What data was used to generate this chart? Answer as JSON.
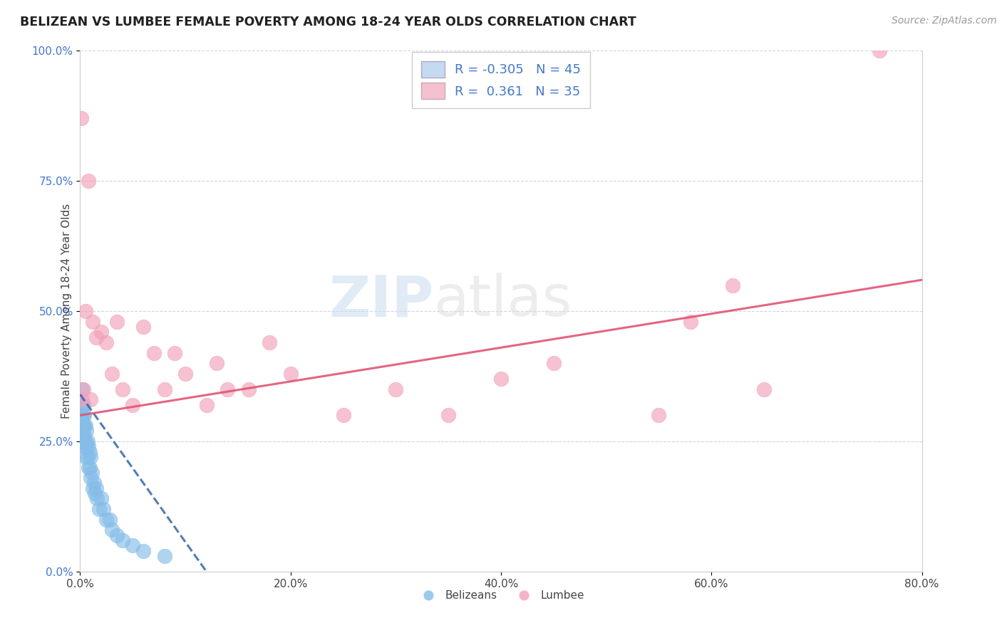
{
  "title": "BELIZEAN VS LUMBEE FEMALE POVERTY AMONG 18-24 YEAR OLDS CORRELATION CHART",
  "source": "Source: ZipAtlas.com",
  "ylabel": "Female Poverty Among 18-24 Year Olds",
  "xlim": [
    0.0,
    0.8
  ],
  "ylim": [
    0.0,
    1.0
  ],
  "xticks": [
    0.0,
    0.2,
    0.4,
    0.6,
    0.8
  ],
  "xtick_labels": [
    "0.0%",
    "20.0%",
    "40.0%",
    "60.0%",
    "80.0%"
  ],
  "yticks": [
    0.0,
    0.25,
    0.5,
    0.75,
    1.0
  ],
  "ytick_labels": [
    "0.0%",
    "25.0%",
    "50.0%",
    "75.0%",
    "100.0%"
  ],
  "belizean_color": "#85bde8",
  "lumbee_color": "#f2a0b8",
  "belizean_line_color": "#3366aa",
  "lumbee_line_color": "#e05575",
  "legend_box_color": "#c5d9f0",
  "legend_pink_color": "#f5c0d0",
  "R_belizean": -0.305,
  "N_belizean": 45,
  "R_lumbee": 0.361,
  "N_lumbee": 35,
  "watermark_zip": "ZIP",
  "watermark_atlas": "atlas",
  "title_fontsize": 12.5,
  "axis_label_fontsize": 11,
  "tick_fontsize": 11,
  "legend_fontsize": 13,
  "source_fontsize": 10,
  "belizean_x": [
    0.001,
    0.001,
    0.001,
    0.002,
    0.002,
    0.002,
    0.002,
    0.003,
    0.003,
    0.003,
    0.003,
    0.004,
    0.004,
    0.004,
    0.004,
    0.005,
    0.005,
    0.005,
    0.006,
    0.006,
    0.007,
    0.007,
    0.008,
    0.008,
    0.009,
    0.009,
    0.01,
    0.01,
    0.011,
    0.012,
    0.013,
    0.014,
    0.015,
    0.016,
    0.018,
    0.02,
    0.022,
    0.025,
    0.028,
    0.03,
    0.035,
    0.04,
    0.05,
    0.06,
    0.08
  ],
  "belizean_y": [
    0.3,
    0.32,
    0.25,
    0.28,
    0.3,
    0.32,
    0.35,
    0.26,
    0.28,
    0.3,
    0.32,
    0.24,
    0.26,
    0.28,
    0.3,
    0.22,
    0.25,
    0.28,
    0.24,
    0.27,
    0.22,
    0.25,
    0.2,
    0.24,
    0.2,
    0.23,
    0.18,
    0.22,
    0.19,
    0.16,
    0.17,
    0.15,
    0.16,
    0.14,
    0.12,
    0.14,
    0.12,
    0.1,
    0.1,
    0.08,
    0.07,
    0.06,
    0.05,
    0.04,
    0.03
  ],
  "lumbee_x": [
    0.001,
    0.002,
    0.003,
    0.005,
    0.008,
    0.01,
    0.012,
    0.015,
    0.02,
    0.025,
    0.03,
    0.035,
    0.04,
    0.05,
    0.06,
    0.07,
    0.08,
    0.09,
    0.1,
    0.12,
    0.13,
    0.14,
    0.16,
    0.18,
    0.2,
    0.25,
    0.3,
    0.35,
    0.4,
    0.45,
    0.55,
    0.58,
    0.62,
    0.65,
    0.76
  ],
  "lumbee_y": [
    0.87,
    0.33,
    0.35,
    0.5,
    0.75,
    0.33,
    0.48,
    0.45,
    0.46,
    0.44,
    0.38,
    0.48,
    0.35,
    0.32,
    0.47,
    0.42,
    0.35,
    0.42,
    0.38,
    0.32,
    0.4,
    0.35,
    0.35,
    0.44,
    0.38,
    0.3,
    0.35,
    0.3,
    0.37,
    0.4,
    0.3,
    0.48,
    0.55,
    0.35,
    1.0
  ],
  "bel_line_x0": 0.0,
  "bel_line_y0": 0.34,
  "bel_line_x1": 0.12,
  "bel_line_y1": 0.0,
  "lum_line_x0": 0.0,
  "lum_line_y0": 0.3,
  "lum_line_x1": 0.8,
  "lum_line_y1": 0.56
}
